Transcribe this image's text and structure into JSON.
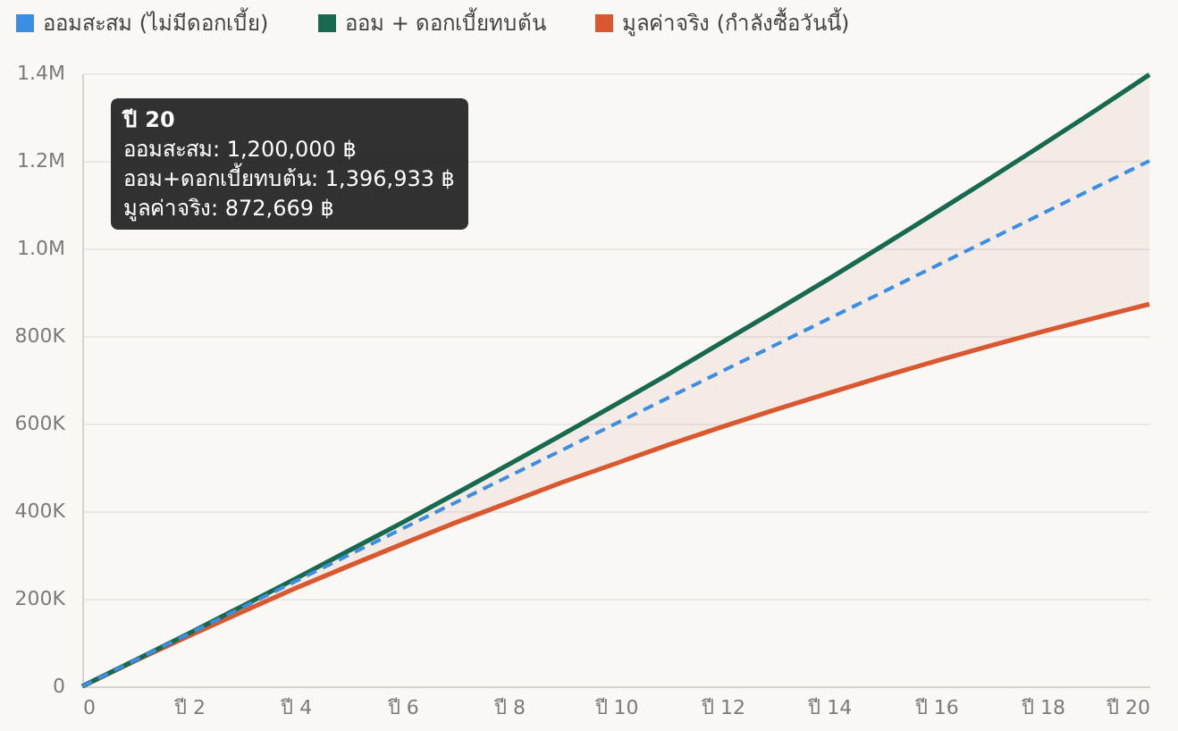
{
  "chart_data": {
    "type": "line",
    "x": [
      0,
      1,
      2,
      3,
      4,
      5,
      6,
      7,
      8,
      9,
      10,
      11,
      12,
      13,
      14,
      15,
      16,
      17,
      18,
      19,
      20
    ],
    "series": [
      {
        "name": "ออมสะสม (ไม่มีดอกเบี้ย)",
        "color": "#3b8ee0",
        "line_style": "dashed",
        "values": [
          0,
          60000,
          120000,
          180000,
          240000,
          300000,
          360000,
          420000,
          480000,
          540000,
          600000,
          660000,
          720000,
          780000,
          840000,
          900000,
          960000,
          1020000,
          1080000,
          1140000,
          1200000
        ],
        "lower": [
          0,
          59000,
          115000,
          170000,
          224000,
          275000,
          325000,
          374000,
          420000,
          466000,
          509000,
          552000,
          593000,
          632000,
          670000,
          707000,
          743000,
          777000,
          810000,
          842000,
          872669
        ],
        "upper": [
          0,
          60000,
          121000,
          183000,
          246000,
          310000,
          374000,
          440000,
          507000,
          575000,
          644000,
          714000,
          786000,
          858000,
          931000,
          1006000,
          1082000,
          1159000,
          1237000,
          1316000,
          1396933
        ]
      },
      {
        "name": "ออม + ดอกเบี้ยทบต้น",
        "color": "#17694f",
        "line_style": "solid",
        "values": [
          0,
          60000,
          121000,
          183000,
          246000,
          310000,
          374000,
          440000,
          507000,
          575000,
          644000,
          714000,
          786000,
          858000,
          931000,
          1006000,
          1082000,
          1159000,
          1237000,
          1316000,
          1396933
        ]
      },
      {
        "name": "มูลค่าจริง (กำลังซื้อวันนี้)",
        "color": "#d9582f",
        "line_style": "solid",
        "values": [
          0,
          59000,
          115000,
          170000,
          224000,
          275000,
          325000,
          374000,
          420000,
          466000,
          509000,
          552000,
          593000,
          632000,
          670000,
          707000,
          743000,
          777000,
          810000,
          842000,
          872669
        ]
      }
    ],
    "xlim": [
      0,
      20
    ],
    "xticks": [
      0,
      {
        "value": 2,
        "label": "ปี 2"
      },
      {
        "value": 4,
        "label": "ปี 4"
      },
      {
        "value": 6,
        "label": "ปี 6"
      },
      {
        "value": 8,
        "label": "ปี 8"
      },
      {
        "value": 10,
        "label": "ปี 10"
      },
      {
        "value": 12,
        "label": "ปี 12"
      },
      {
        "value": 14,
        "label": "ปี 14"
      },
      {
        "value": 16,
        "label": "ปี 16"
      },
      {
        "value": 18,
        "label": "ปี 18"
      },
      {
        "value": 20,
        "label": "ปี 20"
      }
    ],
    "ylim": [
      0,
      1400000
    ],
    "yticks": [
      0,
      {
        "value": 200000,
        "label": "200K"
      },
      {
        "value": 400000,
        "label": "400K"
      },
      {
        "value": 600000,
        "label": "600K"
      },
      {
        "value": 800000,
        "label": "800K"
      },
      {
        "value": 1000000,
        "label": "1.0M"
      },
      {
        "value": 1200000,
        "label": "1.2M"
      },
      {
        "value": 1400000,
        "label": "1.4M"
      }
    ],
    "grid": "y",
    "legend": "top left",
    "annotations": [
      "ปี 20",
      "ออมสะสม: 1,200,000 ฿",
      "ออม+ดอกเบี้ยทบต้น: 1,396,933 ฿",
      "มูลค่าจริง: 872,669 ฿"
    ]
  }
}
